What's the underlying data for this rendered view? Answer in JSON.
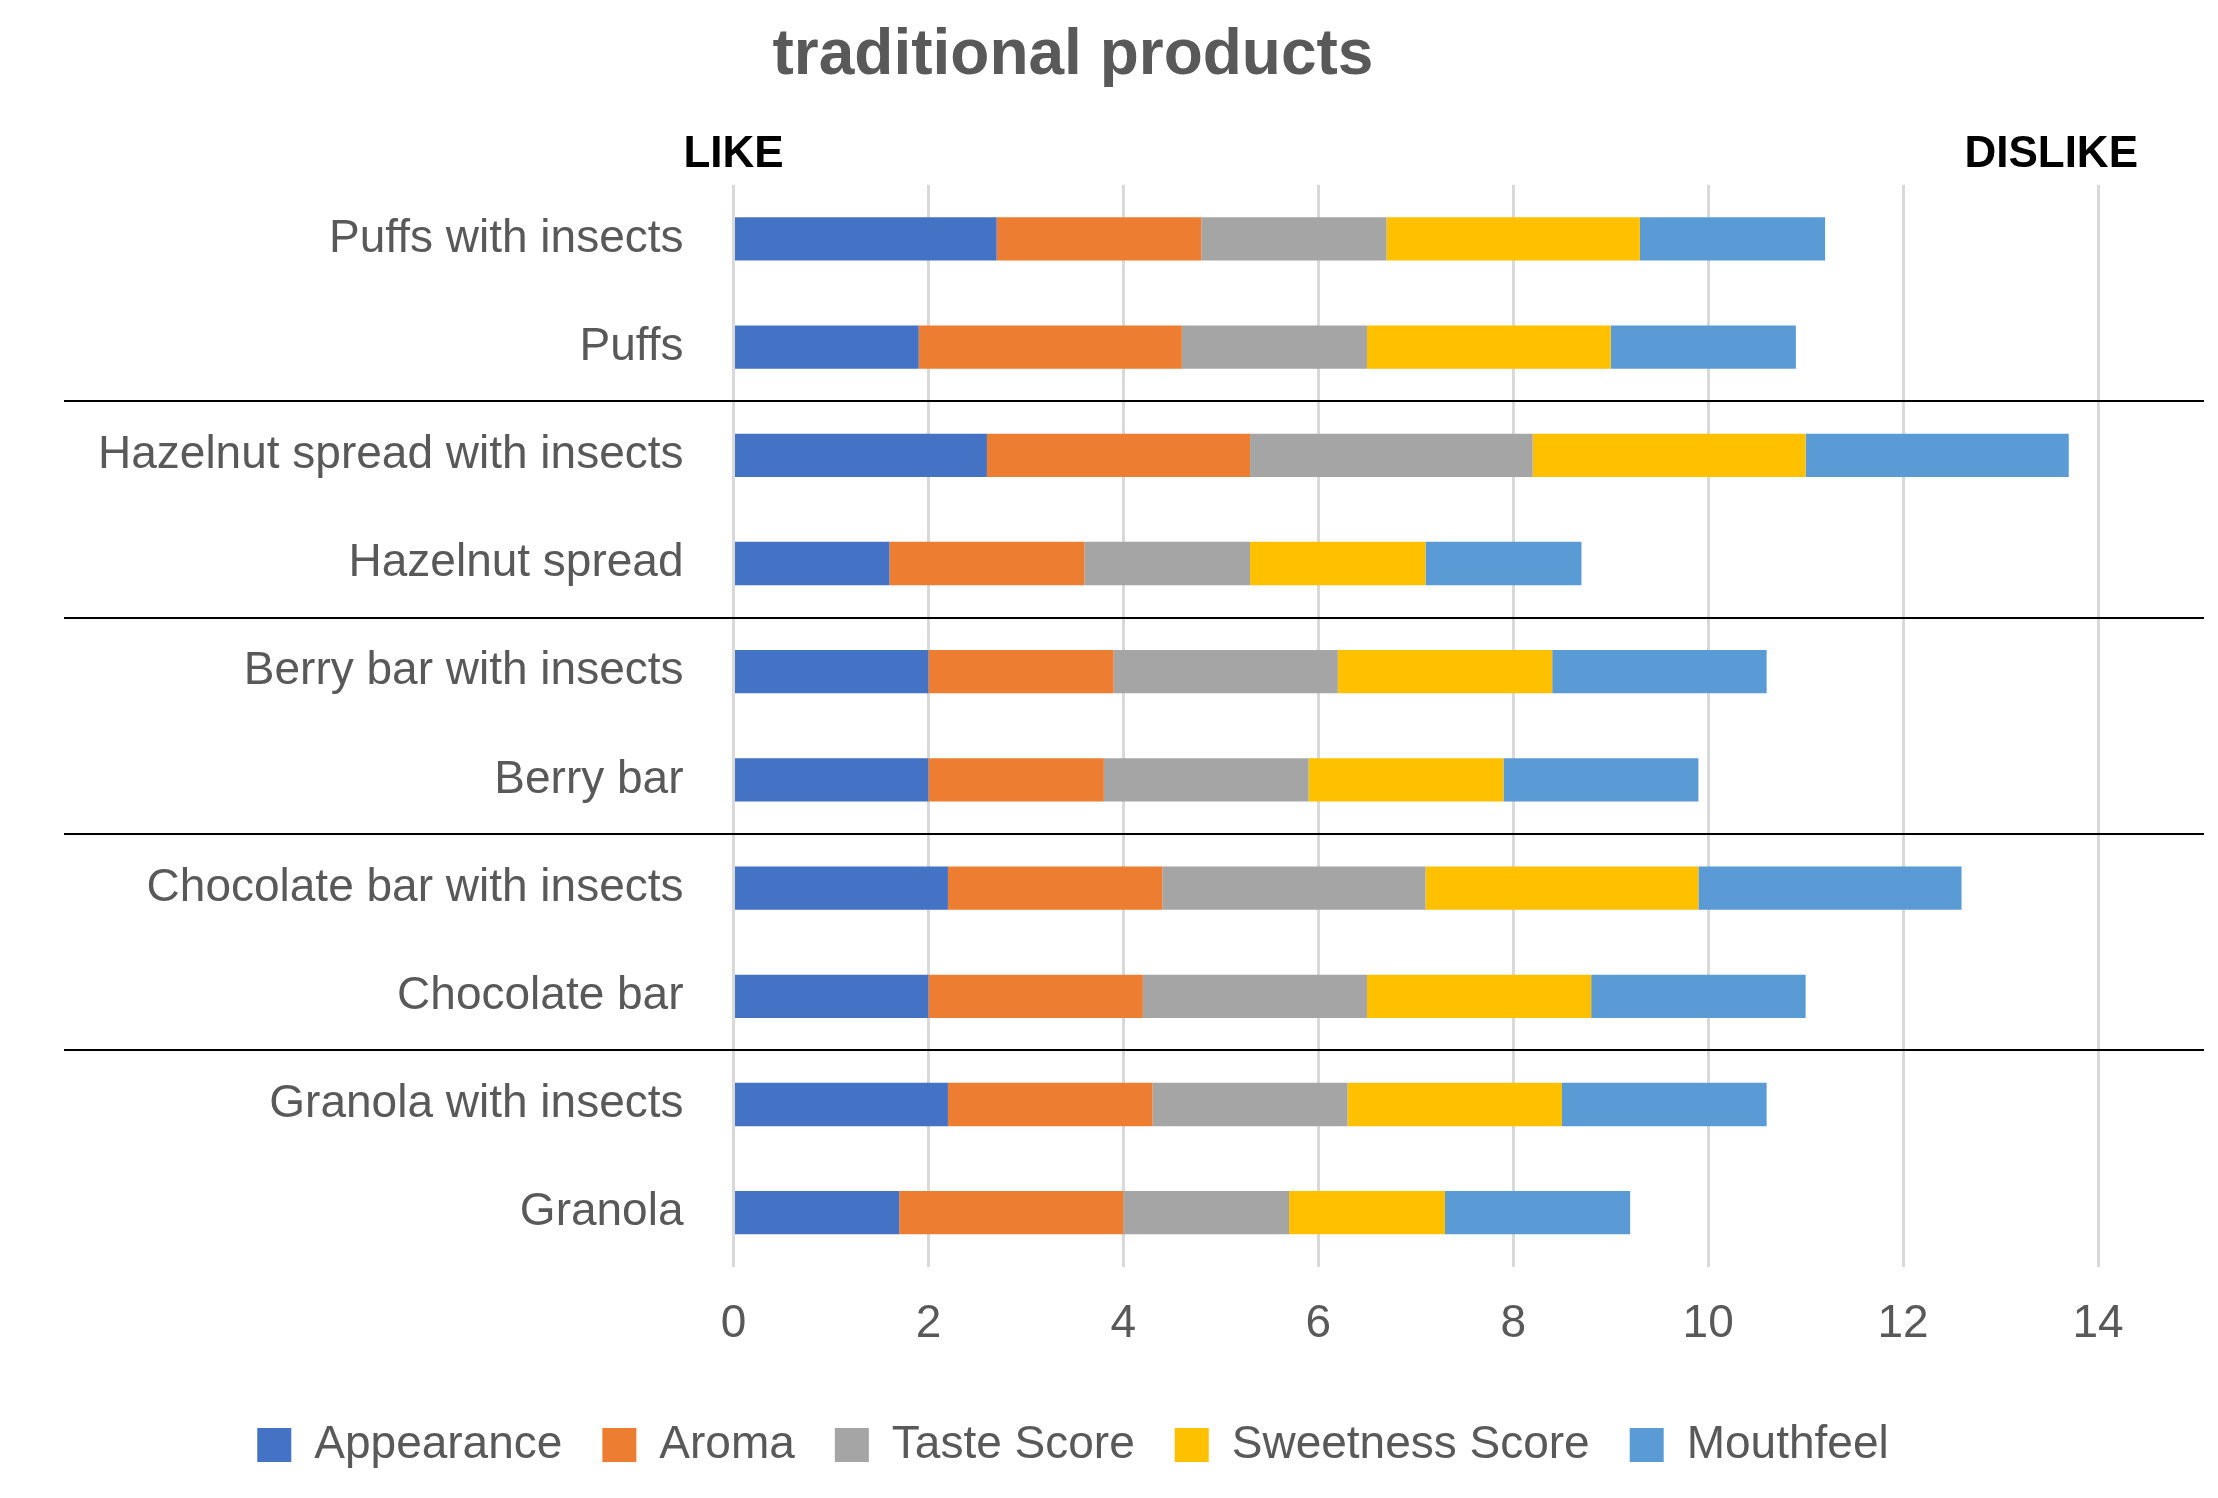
{
  "chart_data": {
    "type": "bar",
    "orientation": "horizontal",
    "stacked": true,
    "title": "traditional products",
    "categories": [
      "Puffs with insects",
      "Puffs",
      "Hazelnut spread with insects",
      "Hazelnut spread",
      "Berry bar with insects",
      "Berry bar",
      "Chocolate bar with insects",
      "Chocolate bar",
      "Granola with insects",
      "Granola"
    ],
    "series": [
      {
        "name": "Appearance",
        "color": "#4472c4",
        "values": [
          2.7,
          1.9,
          2.6,
          1.6,
          2.0,
          2.0,
          2.2,
          2.0,
          2.2,
          1.7
        ]
      },
      {
        "name": "Aroma",
        "color": "#ed7d31",
        "values": [
          2.1,
          2.7,
          2.7,
          2.0,
          1.9,
          1.8,
          2.2,
          2.2,
          2.1,
          2.3
        ]
      },
      {
        "name": "Taste Score",
        "color": "#a5a5a5",
        "values": [
          1.9,
          1.9,
          2.9,
          1.7,
          2.3,
          2.1,
          2.7,
          2.3,
          2.0,
          1.7
        ]
      },
      {
        "name": "Sweetness Score",
        "color": "#ffc000",
        "values": [
          2.6,
          2.5,
          2.8,
          1.8,
          2.2,
          2.0,
          2.8,
          2.3,
          2.2,
          1.6
        ]
      },
      {
        "name": "Mouthfeel",
        "color": "#5b9bd5",
        "values": [
          1.9,
          1.9,
          2.7,
          1.6,
          2.2,
          2.0,
          2.7,
          2.2,
          2.1,
          1.9
        ]
      }
    ],
    "xlim": [
      0,
      14
    ],
    "xticks": [
      0,
      2,
      4,
      6,
      8,
      10,
      12,
      14
    ],
    "grid": "x",
    "legend": "bottom",
    "annotations": [
      "LIKE",
      "DISLIKE"
    ]
  }
}
